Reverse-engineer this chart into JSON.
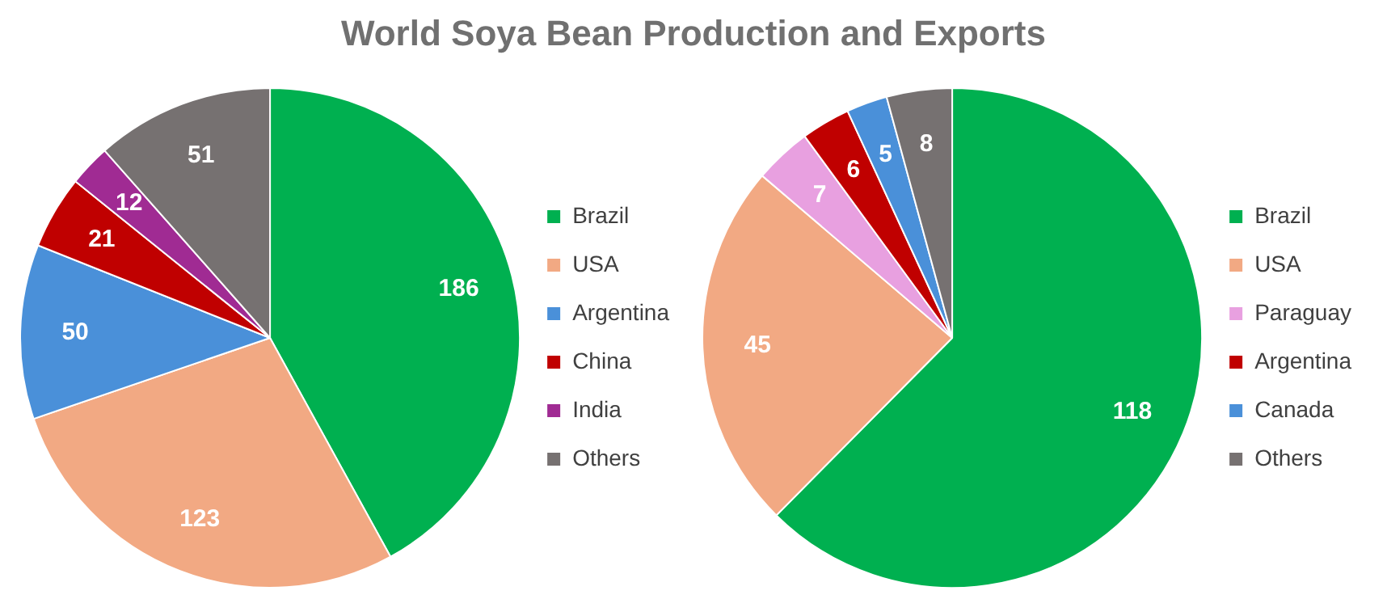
{
  "chart_data": [
    {
      "type": "pie",
      "title": "World Soya Bean Production and Exports",
      "categories": [
        "Brazil",
        "USA",
        "Argentina",
        "China",
        "India",
        "Others"
      ],
      "values": [
        186,
        123,
        50,
        21,
        12,
        51
      ],
      "colors": [
        "#00b050",
        "#f2a983",
        "#4a90d9",
        "#c00000",
        "#a02b93",
        "#767171"
      ],
      "data_labels": true,
      "legend": "right"
    },
    {
      "type": "pie",
      "categories": [
        "Brazil",
        "USA",
        "Paraguay",
        "Argentina",
        "Canada",
        "Others"
      ],
      "values": [
        118,
        45,
        7,
        6,
        5,
        8
      ],
      "colors": [
        "#00b050",
        "#f2a983",
        "#e8a0e0",
        "#c00000",
        "#4a90d9",
        "#767171"
      ],
      "data_labels": true,
      "legend": "right"
    }
  ]
}
